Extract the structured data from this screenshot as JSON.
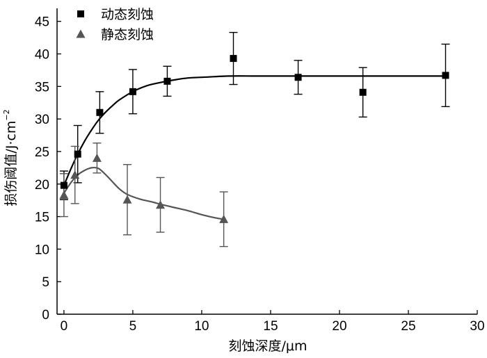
{
  "chart_data": {
    "type": "scatter",
    "xlabel": "刻蚀深度/μm",
    "ylabel": "损伤阈值/J·cm",
    "ylabel_sup": "−2",
    "xlim": [
      -0.5,
      30
    ],
    "ylim": [
      0,
      47
    ],
    "xticks": [
      0,
      5,
      10,
      15,
      20,
      25,
      30
    ],
    "yticks": [
      0,
      5,
      10,
      15,
      20,
      25,
      30,
      35,
      40,
      45
    ],
    "grid": false,
    "legend_position": "top-left",
    "series": [
      {
        "name": "动态刻蚀",
        "marker": "square",
        "color": "#000000",
        "points": [
          {
            "x": 0,
            "y": 19.8,
            "err": 2.2
          },
          {
            "x": 1.0,
            "y": 24.6,
            "err": 4.4
          },
          {
            "x": 2.6,
            "y": 31.0,
            "err": 3.2
          },
          {
            "x": 5.0,
            "y": 34.2,
            "err": 3.4
          },
          {
            "x": 7.5,
            "y": 35.8,
            "err": 2.3
          },
          {
            "x": 12.3,
            "y": 39.3,
            "err": 4.0
          },
          {
            "x": 17.0,
            "y": 36.4,
            "err": 2.6
          },
          {
            "x": 21.7,
            "y": 34.1,
            "err": 3.8
          },
          {
            "x": 27.7,
            "y": 36.7,
            "err": 4.8
          }
        ],
        "fit": [
          [
            0,
            19.8
          ],
          [
            0.5,
            22.3
          ],
          [
            1,
            24.6
          ],
          [
            1.5,
            26.6
          ],
          [
            2,
            28.3
          ],
          [
            2.5,
            29.8
          ],
          [
            3,
            31.0
          ],
          [
            3.5,
            32.0
          ],
          [
            4,
            32.9
          ],
          [
            5,
            34.2
          ],
          [
            6,
            35.1
          ],
          [
            7,
            35.6
          ],
          [
            8,
            36.0
          ],
          [
            9,
            36.3
          ],
          [
            10,
            36.4
          ],
          [
            12,
            36.6
          ],
          [
            14,
            36.6
          ],
          [
            17,
            36.6
          ],
          [
            20,
            36.6
          ],
          [
            24,
            36.6
          ],
          [
            27.7,
            36.6
          ]
        ]
      },
      {
        "name": "静态刻蚀",
        "marker": "triangle",
        "color": "#555555",
        "points": [
          {
            "x": 0,
            "y": 18.3,
            "err": 3.3
          },
          {
            "x": 0.8,
            "y": 21.4,
            "err": 4.4
          },
          {
            "x": 2.4,
            "y": 24.0,
            "err": 2.3
          },
          {
            "x": 4.6,
            "y": 17.6,
            "err": 5.4
          },
          {
            "x": 7.0,
            "y": 16.8,
            "err": 4.2
          },
          {
            "x": 11.6,
            "y": 14.6,
            "err": 4.2
          }
        ],
        "fit": [
          [
            0,
            18.6
          ],
          [
            0.5,
            20.2
          ],
          [
            1,
            21.4
          ],
          [
            1.5,
            22.1
          ],
          [
            2,
            22.5
          ],
          [
            2.5,
            22.4
          ],
          [
            3,
            21.5
          ],
          [
            3.5,
            20.4
          ],
          [
            4,
            19.3
          ],
          [
            4.6,
            18.4
          ],
          [
            5.5,
            17.7
          ],
          [
            6.5,
            17.2
          ],
          [
            7,
            16.9
          ],
          [
            8,
            16.4
          ],
          [
            9,
            15.9
          ],
          [
            10,
            15.3
          ],
          [
            11,
            14.8
          ],
          [
            11.6,
            14.6
          ]
        ]
      }
    ]
  }
}
